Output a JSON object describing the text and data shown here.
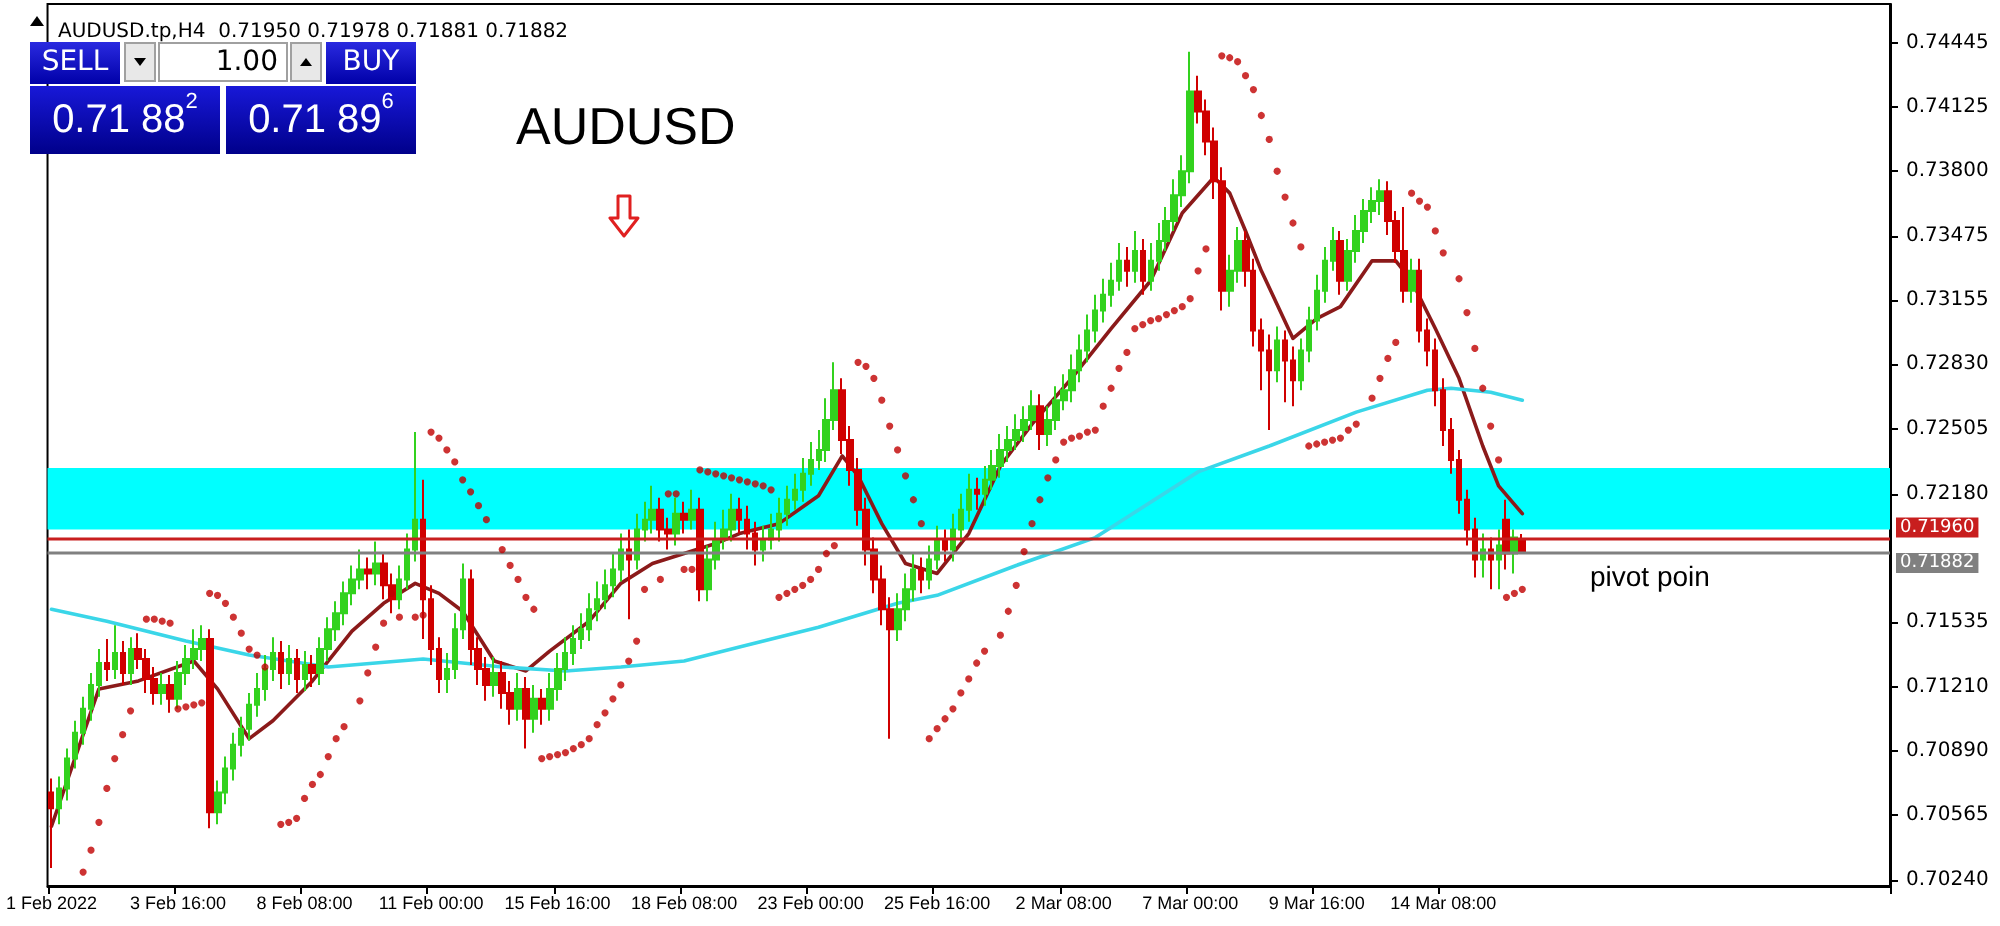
{
  "chart_data": {
    "type": "candlestick",
    "title": "AUDUSD.tp,H4  0.71950 0.71978 0.71881 0.71882",
    "annotations": [
      "AUDUSD",
      "pivot poin",
      "SELL",
      "1.00",
      "BUY",
      "0.71 88$^{2}$",
      "0.71 89$^{6}$"
    ],
    "categories": [
      "1 Feb 2022",
      null,
      null,
      null,
      null,
      null,
      null,
      null,
      null,
      null,
      null,
      null,
      null,
      null,
      null,
      null,
      "3 Feb 16:00",
      null,
      null,
      null,
      null,
      null,
      null,
      null,
      null,
      null,
      null,
      null,
      null,
      null,
      null,
      null,
      "8 Feb 08:00",
      null,
      null,
      null,
      null,
      null,
      null,
      null,
      null,
      null,
      null,
      null,
      null,
      null,
      null,
      null,
      "11 Feb 00:00",
      null,
      null,
      null,
      null,
      null,
      null,
      null,
      null,
      null,
      null,
      null,
      null,
      null,
      null,
      null,
      "15 Feb 16:00",
      null,
      null,
      null,
      null,
      null,
      null,
      null,
      null,
      null,
      null,
      null,
      null,
      null,
      null,
      null,
      "18 Feb 08:00",
      null,
      null,
      null,
      null,
      null,
      null,
      null,
      null,
      null,
      null,
      null,
      null,
      null,
      null,
      null,
      "23 Feb 00:00",
      null,
      null,
      null,
      null,
      null,
      null,
      null,
      null,
      null,
      null,
      null,
      null,
      null,
      null,
      null,
      "25 Feb 16:00",
      null,
      null,
      null,
      null,
      null,
      null,
      null,
      null,
      null,
      null,
      null,
      null,
      null,
      null,
      null,
      "2 Mar 08:00",
      null,
      null,
      null,
      null,
      null,
      null,
      null,
      null,
      null,
      null,
      null,
      null,
      null,
      null,
      null,
      "7 Mar 00:00",
      null,
      null,
      null,
      null,
      null,
      null,
      null,
      null,
      null,
      null,
      null,
      null,
      null,
      null,
      null,
      "9 Mar 16:00",
      null,
      null,
      null,
      null,
      null,
      null,
      null,
      null,
      null,
      null,
      null,
      null,
      null,
      null,
      null,
      "14 Mar 08:00",
      null,
      null,
      null,
      null,
      null,
      null,
      null,
      null,
      null,
      null,
      null,
      null,
      null,
      null,
      null,
      null,
      null,
      null,
      null,
      null,
      null,
      null,
      null,
      null,
      null,
      null,
      null,
      null,
      null,
      null,
      null,
      null,
      null,
      null,
      null,
      null,
      null,
      null,
      null,
      null,
      null,
      null,
      null,
      null,
      null,
      null,
      null,
      null,
      null,
      null,
      null,
      null,
      null,
      null,
      null,
      null
    ],
    "ohlc": [
      [
        0.7068,
        0.7075,
        0.703,
        0.706
      ],
      [
        0.706,
        0.7076,
        0.7052,
        0.707
      ],
      [
        0.707,
        0.709,
        0.7064,
        0.7085
      ],
      [
        0.7085,
        0.7104,
        0.708,
        0.7098
      ],
      [
        0.7098,
        0.7116,
        0.7092,
        0.711
      ],
      [
        0.711,
        0.7128,
        0.7104,
        0.7122
      ],
      [
        0.7122,
        0.714,
        0.7116,
        0.7133
      ],
      [
        0.7133,
        0.7145,
        0.7124,
        0.713
      ],
      [
        0.713,
        0.7152,
        0.7125,
        0.7138
      ],
      [
        0.7138,
        0.7144,
        0.7122,
        0.7128
      ],
      [
        0.7128,
        0.7146,
        0.7122,
        0.714
      ],
      [
        0.714,
        0.7148,
        0.713,
        0.7135
      ],
      [
        0.7135,
        0.714,
        0.7118,
        0.7125
      ],
      [
        0.7125,
        0.7131,
        0.7112,
        0.7118
      ],
      [
        0.7118,
        0.7128,
        0.7112,
        0.7122
      ],
      [
        0.7122,
        0.7127,
        0.7108,
        0.7115
      ],
      [
        0.7115,
        0.7134,
        0.711,
        0.7128
      ],
      [
        0.7128,
        0.7142,
        0.7122,
        0.7135
      ],
      [
        0.7135,
        0.715,
        0.713,
        0.714
      ],
      [
        0.714,
        0.7152,
        0.7134,
        0.7145
      ],
      [
        0.7145,
        0.715,
        0.705,
        0.7058
      ],
      [
        0.7058,
        0.7074,
        0.7052,
        0.7068
      ],
      [
        0.7068,
        0.7086,
        0.7062,
        0.708
      ],
      [
        0.708,
        0.7098,
        0.7074,
        0.7092
      ],
      [
        0.7092,
        0.7106,
        0.7086,
        0.71
      ],
      [
        0.71,
        0.7118,
        0.7094,
        0.7112
      ],
      [
        0.7112,
        0.7128,
        0.7106,
        0.712
      ],
      [
        0.712,
        0.7137,
        0.7114,
        0.713
      ],
      [
        0.713,
        0.7146,
        0.7124,
        0.7138
      ],
      [
        0.7138,
        0.7144,
        0.712,
        0.7128
      ],
      [
        0.7128,
        0.7142,
        0.7122,
        0.7135
      ],
      [
        0.7135,
        0.714,
        0.7118,
        0.7125
      ],
      [
        0.7125,
        0.7139,
        0.7119,
        0.7132
      ],
      [
        0.7132,
        0.7137,
        0.7121,
        0.7128
      ],
      [
        0.7128,
        0.7146,
        0.7122,
        0.714
      ],
      [
        0.714,
        0.7156,
        0.7134,
        0.715
      ],
      [
        0.715,
        0.7164,
        0.7144,
        0.7158
      ],
      [
        0.7158,
        0.7174,
        0.7152,
        0.7168
      ],
      [
        0.7168,
        0.7182,
        0.7162,
        0.7175
      ],
      [
        0.7175,
        0.719,
        0.717,
        0.718
      ],
      [
        0.718,
        0.7186,
        0.717,
        0.7178
      ],
      [
        0.7178,
        0.7194,
        0.7172,
        0.7183
      ],
      [
        0.7183,
        0.7188,
        0.7165,
        0.7172
      ],
      [
        0.7172,
        0.7178,
        0.7158,
        0.7165
      ],
      [
        0.7165,
        0.7182,
        0.716,
        0.7175
      ],
      [
        0.7175,
        0.7198,
        0.717,
        0.719
      ],
      [
        0.719,
        0.7249,
        0.7184,
        0.7205
      ],
      [
        0.7205,
        0.7225,
        0.7145,
        0.7165
      ],
      [
        0.7165,
        0.7172,
        0.7132,
        0.714
      ],
      [
        0.714,
        0.7146,
        0.7118,
        0.7125
      ],
      [
        0.7125,
        0.7138,
        0.7118,
        0.713
      ],
      [
        0.713,
        0.7158,
        0.7125,
        0.715
      ],
      [
        0.715,
        0.7183,
        0.7145,
        0.7175
      ],
      [
        0.7175,
        0.718,
        0.7132,
        0.714
      ],
      [
        0.714,
        0.7146,
        0.7122,
        0.713
      ],
      [
        0.713,
        0.7136,
        0.7114,
        0.7122
      ],
      [
        0.7122,
        0.7136,
        0.7116,
        0.7128
      ],
      [
        0.7128,
        0.7134,
        0.711,
        0.7118
      ],
      [
        0.7118,
        0.7124,
        0.7102,
        0.711
      ],
      [
        0.711,
        0.7128,
        0.7104,
        0.712
      ],
      [
        0.712,
        0.7126,
        0.709,
        0.7105
      ],
      [
        0.7105,
        0.7122,
        0.7098,
        0.7115
      ],
      [
        0.7115,
        0.712,
        0.7102,
        0.711
      ],
      [
        0.711,
        0.7128,
        0.7104,
        0.712
      ],
      [
        0.712,
        0.7138,
        0.7114,
        0.713
      ],
      [
        0.713,
        0.7146,
        0.7124,
        0.7138
      ],
      [
        0.7138,
        0.7152,
        0.7132,
        0.7145
      ],
      [
        0.7145,
        0.7158,
        0.714,
        0.715
      ],
      [
        0.715,
        0.7168,
        0.7144,
        0.716
      ],
      [
        0.716,
        0.7174,
        0.7154,
        0.7165
      ],
      [
        0.7165,
        0.718,
        0.716,
        0.7172
      ],
      [
        0.7172,
        0.7188,
        0.7166,
        0.718
      ],
      [
        0.718,
        0.7198,
        0.7174,
        0.719
      ],
      [
        0.719,
        0.72,
        0.7155,
        0.7185
      ],
      [
        0.7185,
        0.7208,
        0.718,
        0.72
      ],
      [
        0.72,
        0.7214,
        0.7194,
        0.7205
      ],
      [
        0.7205,
        0.7222,
        0.7198,
        0.721
      ],
      [
        0.721,
        0.7216,
        0.7194,
        0.72
      ],
      [
        0.72,
        0.7206,
        0.719,
        0.7198
      ],
      [
        0.7198,
        0.7216,
        0.7192,
        0.7208
      ],
      [
        0.7208,
        0.7214,
        0.7198,
        0.7205
      ],
      [
        0.7205,
        0.722,
        0.72,
        0.721
      ],
      [
        0.721,
        0.7216,
        0.7164,
        0.717
      ],
      [
        0.717,
        0.7192,
        0.7164,
        0.7185
      ],
      [
        0.7185,
        0.7204,
        0.718,
        0.7195
      ],
      [
        0.7195,
        0.721,
        0.719,
        0.72
      ],
      [
        0.72,
        0.7218,
        0.7194,
        0.721
      ],
      [
        0.721,
        0.7216,
        0.7198,
        0.7205
      ],
      [
        0.7205,
        0.7212,
        0.719,
        0.7198
      ],
      [
        0.7198,
        0.7204,
        0.7182,
        0.719
      ],
      [
        0.719,
        0.7202,
        0.7184,
        0.7195
      ],
      [
        0.7195,
        0.7208,
        0.719,
        0.72
      ],
      [
        0.72,
        0.7216,
        0.7194,
        0.7208
      ],
      [
        0.7208,
        0.7222,
        0.7202,
        0.7215
      ],
      [
        0.7215,
        0.7228,
        0.721,
        0.722
      ],
      [
        0.722,
        0.7236,
        0.7214,
        0.7228
      ],
      [
        0.7228,
        0.7244,
        0.7222,
        0.7235
      ],
      [
        0.7235,
        0.725,
        0.723,
        0.724
      ],
      [
        0.724,
        0.7266,
        0.7234,
        0.7255
      ],
      [
        0.7255,
        0.7284,
        0.725,
        0.727
      ],
      [
        0.727,
        0.7276,
        0.7238,
        0.7245
      ],
      [
        0.7245,
        0.7252,
        0.7222,
        0.723
      ],
      [
        0.723,
        0.7236,
        0.7202,
        0.721
      ],
      [
        0.721,
        0.7216,
        0.7182,
        0.719
      ],
      [
        0.719,
        0.7196,
        0.7168,
        0.7175
      ],
      [
        0.7175,
        0.7182,
        0.7152,
        0.716
      ],
      [
        0.716,
        0.7166,
        0.7095,
        0.715
      ],
      [
        0.715,
        0.7168,
        0.7144,
        0.716
      ],
      [
        0.716,
        0.7178,
        0.7154,
        0.717
      ],
      [
        0.717,
        0.7188,
        0.7164,
        0.718
      ],
      [
        0.718,
        0.7186,
        0.7168,
        0.7175
      ],
      [
        0.7175,
        0.7192,
        0.717,
        0.7185
      ],
      [
        0.7185,
        0.7202,
        0.718,
        0.7195
      ],
      [
        0.7195,
        0.72,
        0.7184,
        0.719
      ],
      [
        0.719,
        0.7208,
        0.7184,
        0.72
      ],
      [
        0.72,
        0.7218,
        0.7194,
        0.721
      ],
      [
        0.721,
        0.7228,
        0.7204,
        0.722
      ],
      [
        0.722,
        0.7226,
        0.721,
        0.7218
      ],
      [
        0.7218,
        0.7232,
        0.7212,
        0.7225
      ],
      [
        0.7225,
        0.724,
        0.722,
        0.7232
      ],
      [
        0.7232,
        0.7248,
        0.7226,
        0.724
      ],
      [
        0.724,
        0.7252,
        0.7234,
        0.7245
      ],
      [
        0.7245,
        0.7258,
        0.724,
        0.725
      ],
      [
        0.725,
        0.7262,
        0.7244,
        0.7255
      ],
      [
        0.7255,
        0.727,
        0.725,
        0.7262
      ],
      [
        0.7262,
        0.7268,
        0.724,
        0.7248
      ],
      [
        0.7248,
        0.7262,
        0.7242,
        0.7255
      ],
      [
        0.7255,
        0.7272,
        0.725,
        0.7265
      ],
      [
        0.7265,
        0.7278,
        0.726,
        0.727
      ],
      [
        0.727,
        0.7288,
        0.7264,
        0.728
      ],
      [
        0.728,
        0.7298,
        0.7274,
        0.729
      ],
      [
        0.729,
        0.7308,
        0.7284,
        0.73
      ],
      [
        0.73,
        0.7318,
        0.7294,
        0.731
      ],
      [
        0.731,
        0.7326,
        0.7304,
        0.7318
      ],
      [
        0.7318,
        0.7334,
        0.7312,
        0.7325
      ],
      [
        0.7325,
        0.7344,
        0.732,
        0.7335
      ],
      [
        0.7335,
        0.7342,
        0.7322,
        0.733
      ],
      [
        0.733,
        0.735,
        0.7324,
        0.734
      ],
      [
        0.734,
        0.7346,
        0.7318,
        0.7325
      ],
      [
        0.7325,
        0.7344,
        0.732,
        0.7335
      ],
      [
        0.7335,
        0.7354,
        0.733,
        0.7345
      ],
      [
        0.7345,
        0.7362,
        0.734,
        0.7355
      ],
      [
        0.7355,
        0.7376,
        0.735,
        0.7368
      ],
      [
        0.7368,
        0.7388,
        0.7362,
        0.738
      ],
      [
        0.738,
        0.744,
        0.7374,
        0.742
      ],
      [
        0.742,
        0.7428,
        0.7404,
        0.741
      ],
      [
        0.741,
        0.7416,
        0.7388,
        0.7395
      ],
      [
        0.7395,
        0.7402,
        0.7366,
        0.7375
      ],
      [
        0.7375,
        0.7382,
        0.731,
        0.732
      ],
      [
        0.732,
        0.7338,
        0.7312,
        0.733
      ],
      [
        0.733,
        0.7352,
        0.7324,
        0.7345
      ],
      [
        0.7345,
        0.735,
        0.7322,
        0.733
      ],
      [
        0.733,
        0.7336,
        0.7292,
        0.73
      ],
      [
        0.73,
        0.7306,
        0.727,
        0.729
      ],
      [
        0.729,
        0.7298,
        0.725,
        0.728
      ],
      [
        0.728,
        0.7302,
        0.7274,
        0.7295
      ],
      [
        0.7295,
        0.73,
        0.7264,
        0.7285
      ],
      [
        0.7285,
        0.7292,
        0.7262,
        0.7275
      ],
      [
        0.7275,
        0.7296,
        0.727,
        0.729
      ],
      [
        0.729,
        0.7312,
        0.7284,
        0.7305
      ],
      [
        0.7305,
        0.7328,
        0.73,
        0.732
      ],
      [
        0.732,
        0.7342,
        0.7314,
        0.7335
      ],
      [
        0.7335,
        0.7352,
        0.733,
        0.7345
      ],
      [
        0.7345,
        0.735,
        0.7318,
        0.7325
      ],
      [
        0.7325,
        0.7346,
        0.732,
        0.734
      ],
      [
        0.734,
        0.7358,
        0.7334,
        0.735
      ],
      [
        0.735,
        0.7366,
        0.7344,
        0.736
      ],
      [
        0.736,
        0.7372,
        0.7354,
        0.7365
      ],
      [
        0.7365,
        0.7376,
        0.7358,
        0.737
      ],
      [
        0.737,
        0.7375,
        0.7348,
        0.7355
      ],
      [
        0.7355,
        0.736,
        0.7334,
        0.734
      ],
      [
        0.734,
        0.7362,
        0.7314,
        0.732
      ],
      [
        0.732,
        0.7336,
        0.7314,
        0.733
      ],
      [
        0.733,
        0.7336,
        0.7294,
        0.73
      ],
      [
        0.73,
        0.7306,
        0.7282,
        0.729
      ],
      [
        0.729,
        0.7296,
        0.7262,
        0.727
      ],
      [
        0.727,
        0.7276,
        0.7242,
        0.725
      ],
      [
        0.725,
        0.7256,
        0.7228,
        0.7235
      ],
      [
        0.7235,
        0.724,
        0.7208,
        0.7215
      ],
      [
        0.7215,
        0.722,
        0.7192,
        0.72
      ],
      [
        0.72,
        0.7206,
        0.7176,
        0.7185
      ],
      [
        0.7185,
        0.7198,
        0.7176,
        0.719
      ],
      [
        0.719,
        0.7196,
        0.717,
        0.7185
      ],
      [
        0.7185,
        0.72,
        0.717,
        0.7192
      ],
      [
        0.7205,
        0.7215,
        0.718,
        0.7188
      ],
      [
        0.7188,
        0.72,
        0.7178,
        0.7196
      ],
      [
        0.7195,
        0.71978,
        0.71881,
        0.71882
      ],
      null,
      null,
      null,
      null,
      null,
      null,
      null,
      null,
      null,
      null,
      null,
      null,
      null,
      null,
      null,
      null,
      null,
      null,
      null,
      null,
      null,
      null,
      null,
      null,
      null,
      null,
      null,
      null,
      null,
      null,
      null,
      null,
      null,
      null,
      null,
      null,
      null,
      null,
      null,
      null,
      null,
      null,
      null,
      null,
      null,
      null
    ],
    "colors": [
      "#d00000",
      "#32d21e",
      "#32d21e",
      "#32d21e",
      "#32d21e",
      "#32d21e",
      "#32d21e",
      "#d00000",
      "#32d21e",
      "#d00000",
      "#32d21e",
      "#d00000",
      "#d00000",
      "#d00000",
      "#32d21e",
      "#d00000",
      "#32d21e",
      "#32d21e",
      "#32d21e",
      "#32d21e",
      "#d00000",
      "#32d21e",
      "#32d21e",
      "#32d21e",
      "#32d21e",
      "#32d21e",
      "#32d21e",
      "#32d21e",
      "#32d21e",
      "#d00000",
      "#32d21e",
      "#d00000",
      "#32d21e",
      "#d00000",
      "#32d21e",
      "#32d21e",
      "#32d21e",
      "#32d21e",
      "#32d21e",
      "#32d21e",
      "#d00000",
      "#32d21e",
      "#d00000",
      "#d00000",
      "#32d21e",
      "#32d21e",
      "#32d21e",
      "#d00000",
      "#d00000",
      "#d00000",
      "#32d21e",
      "#32d21e",
      "#32d21e",
      "#d00000",
      "#d00000",
      "#d00000",
      "#32d21e",
      "#d00000",
      "#d00000",
      "#32d21e",
      "#d00000",
      "#32d21e",
      "#d00000",
      "#32d21e",
      "#32d21e",
      "#32d21e",
      "#32d21e",
      "#32d21e",
      "#32d21e",
      "#32d21e",
      "#32d21e",
      "#32d21e",
      "#32d21e",
      "#d00000",
      "#32d21e",
      "#32d21e",
      "#32d21e",
      "#d00000",
      "#d00000",
      "#32d21e",
      "#d00000",
      "#32d21e",
      "#d00000",
      "#32d21e",
      "#32d21e",
      "#32d21e",
      "#32d21e",
      "#d00000",
      "#d00000",
      "#d00000",
      "#32d21e",
      "#32d21e",
      "#32d21e",
      "#32d21e",
      "#32d21e",
      "#32d21e",
      "#32d21e",
      "#32d21e",
      "#32d21e",
      "#32d21e",
      "#d00000",
      "#d00000",
      "#d00000",
      "#d00000",
      "#d00000",
      "#d00000",
      "#d00000",
      "#32d21e",
      "#32d21e",
      "#32d21e",
      "#d00000",
      "#32d21e",
      "#32d21e",
      "#d00000",
      "#32d21e",
      "#32d21e",
      "#32d21e",
      "#d00000",
      "#32d21e",
      "#32d21e",
      "#32d21e",
      "#32d21e",
      "#32d21e",
      "#32d21e",
      "#32d21e",
      "#d00000",
      "#32d21e",
      "#32d21e",
      "#32d21e",
      "#32d21e",
      "#32d21e",
      "#32d21e",
      "#32d21e",
      "#32d21e",
      "#32d21e",
      "#32d21e",
      "#d00000",
      "#32d21e",
      "#d00000",
      "#32d21e",
      "#32d21e",
      "#32d21e",
      "#32d21e",
      "#32d21e",
      "#32d21e",
      "#d00000",
      "#d00000",
      "#d00000",
      "#d00000",
      "#32d21e",
      "#32d21e",
      "#d00000",
      "#d00000",
      "#d00000",
      "#d00000",
      "#32d21e",
      "#d00000",
      "#d00000",
      "#32d21e",
      "#32d21e",
      "#32d21e",
      "#32d21e",
      "#32d21e",
      "#d00000",
      "#32d21e",
      "#32d21e",
      "#32d21e",
      "#32d21e",
      "#32d21e",
      "#d00000",
      "#d00000",
      "#d00000",
      "#32d21e",
      "#d00000",
      "#d00000",
      "#d00000",
      "#d00000",
      "#d00000",
      "#d00000",
      "#d00000",
      "#d00000",
      "#32d21e",
      "#d00000",
      "#32d21e",
      "#d00000",
      "#32d21e",
      "#d00000",
      null,
      null,
      null,
      null,
      null,
      null,
      null,
      null,
      null,
      null,
      null,
      null,
      null,
      null,
      null,
      null,
      null,
      null,
      null,
      null,
      null,
      null,
      null,
      null,
      null,
      null,
      null,
      null,
      null,
      null,
      null,
      null,
      null,
      null,
      null,
      null,
      null,
      null,
      null,
      null,
      null,
      null,
      null,
      null,
      null,
      null
    ],
    "series": [
      {
        "type": "line",
        "color": "#8b1a1a",
        "marker": "none",
        "values": [
          0.7051,
          null,
          null,
          null,
          null,
          null,
          0.712,
          null,
          null,
          null,
          null,
          0.7124,
          null,
          null,
          null,
          null,
          null,
          null,
          0.7134,
          null,
          null,
          0.712,
          null,
          null,
          null,
          0.7095,
          null,
          null,
          0.7104,
          null,
          null,
          null,
          null,
          0.7124,
          null,
          null,
          null,
          null,
          0.7149,
          null,
          null,
          null,
          0.7163,
          null,
          null,
          null,
          0.7173,
          null,
          null,
          0.7168,
          null,
          null,
          0.7159,
          null,
          null,
          null,
          0.7134,
          null,
          null,
          null,
          0.7129,
          null,
          null,
          0.7139,
          null,
          null,
          null,
          null,
          0.7154,
          null,
          null,
          null,
          0.7173,
          null,
          null,
          null,
          0.7183,
          null,
          null,
          null,
          0.7188,
          null,
          null,
          null,
          0.7193,
          null,
          null,
          0.7198,
          null,
          null,
          null,
          null,
          0.7203,
          null,
          null,
          null,
          null,
          0.7217,
          null,
          null,
          0.7237,
          null,
          0.7227,
          null,
          null,
          0.7203,
          null,
          null,
          0.7183,
          null,
          null,
          null,
          0.7178,
          null,
          null,
          null,
          0.7198,
          null,
          null,
          null,
          0.7232,
          null,
          null,
          null,
          0.7253,
          null,
          null,
          null,
          null,
          0.7276,
          null,
          null,
          null,
          null,
          0.7301,
          null,
          null,
          null,
          null,
          0.7325,
          null,
          null,
          null,
          0.7359,
          null,
          null,
          null,
          0.7377,
          null,
          0.7369,
          null,
          0.735,
          null,
          0.733,
          null,
          null,
          null,
          0.7296,
          null,
          null,
          0.7306,
          null,
          null,
          0.7312,
          null,
          null,
          null,
          0.7335,
          null,
          null,
          0.7335,
          null,
          0.7325,
          null,
          null,
          0.7301,
          null,
          null,
          0.7276,
          null,
          null,
          0.7242,
          null,
          0.7222,
          null,
          null,
          0.7208,
          null,
          null,
          null,
          null,
          null,
          null,
          null,
          null,
          null,
          null,
          null,
          null,
          null,
          null,
          null,
          null,
          null,
          null,
          null,
          null,
          null,
          null,
          null,
          null,
          null,
          null,
          null,
          null,
          null,
          null,
          null,
          null,
          null,
          null,
          null,
          null,
          null,
          null,
          null,
          null,
          null,
          null,
          null,
          null,
          null,
          null
        ]
      },
      {
        "type": "line",
        "color": "#3ad6e8",
        "marker": "none",
        "values": [
          0.716,
          null,
          null,
          null,
          null,
          null,
          null,
          0.7154,
          null,
          null,
          null,
          null,
          null,
          null,
          null,
          null,
          null,
          0.7144,
          null,
          null,
          null,
          null,
          null,
          null,
          null,
          0.7137,
          null,
          null,
          null,
          null,
          null,
          null,
          null,
          null,
          null,
          0.7131,
          null,
          null,
          null,
          null,
          null,
          null,
          null,
          null,
          null,
          null,
          null,
          0.7135,
          null,
          null,
          null,
          null,
          null,
          null,
          null,
          null,
          null,
          0.7131,
          null,
          null,
          null,
          null,
          null,
          null,
          null,
          0.7129,
          null,
          null,
          null,
          null,
          null,
          null,
          0.7131,
          null,
          null,
          null,
          null,
          null,
          null,
          null,
          0.7134,
          null,
          null,
          null,
          null,
          null,
          null,
          0.7141,
          null,
          null,
          null,
          null,
          null,
          null,
          null,
          null,
          null,
          0.7151,
          null,
          null,
          null,
          null,
          null,
          null,
          null,
          null,
          null,
          0.7163,
          null,
          null,
          null,
          null,
          0.7167,
          null,
          null,
          null,
          null,
          null,
          null,
          null,
          null,
          null,
          0.7182,
          null,
          null,
          null,
          null,
          null,
          null,
          null,
          null,
          null,
          0.7196,
          null,
          null,
          null,
          null,
          null,
          null,
          null,
          null,
          null,
          null,
          null,
          null,
          0.7229,
          null,
          null,
          null,
          null,
          null,
          null,
          null,
          null,
          0.7242,
          null,
          null,
          null,
          null,
          null,
          null,
          null,
          null,
          null,
          null,
          0.7259,
          null,
          null,
          null,
          null,
          null,
          null,
          null,
          null,
          0.727,
          null,
          null,
          0.7271,
          null,
          null,
          null,
          null,
          0.7269,
          null,
          null,
          null,
          0.7265,
          null,
          null,
          null,
          null,
          null,
          null,
          null,
          null,
          null,
          null,
          null,
          null,
          null,
          null,
          null,
          null,
          null,
          null,
          null,
          null,
          null,
          null,
          null,
          null,
          null,
          null,
          null,
          null,
          null,
          null,
          null,
          null,
          null,
          null,
          null,
          null,
          null,
          null,
          null,
          null,
          null,
          null,
          null,
          null,
          null,
          null
        ]
      },
      {
        "type": "scatter",
        "color": "#c00000",
        "marker": "circle",
        "values": [
          null,
          null,
          null,
          null,
          0.7028,
          0.7039,
          0.7053,
          0.707,
          0.7085,
          0.7097,
          0.7109,
          null,
          0.7155,
          0.7155,
          0.7154,
          0.7153,
          0.711,
          0.7111,
          0.7112,
          0.7113,
          0.7168,
          0.7167,
          0.7163,
          0.7156,
          0.7148,
          0.714,
          0.7137,
          0.7131,
          null,
          0.7052,
          0.7053,
          0.7055,
          0.7065,
          0.7072,
          0.7077,
          0.7086,
          0.7095,
          0.7101,
          null,
          0.7114,
          0.7128,
          0.7141,
          0.7153,
          0.7168,
          0.7156,
          null,
          0.7156,
          0.7157,
          0.7249,
          0.7246,
          0.724,
          0.7234,
          0.7225,
          0.7219,
          0.7212,
          0.7205,
          null,
          0.719,
          0.7182,
          0.7175,
          0.7166,
          0.716,
          0.7085,
          0.7086,
          0.7087,
          0.7088,
          0.709,
          0.7092,
          0.7095,
          0.7102,
          0.7108,
          0.7115,
          0.7122,
          0.7134,
          0.7144,
          0.717,
          null,
          0.7175,
          0.7218,
          0.7218,
          0.718,
          0.718,
          0.723,
          0.7229,
          0.7228,
          0.7227,
          0.7226,
          0.7225,
          0.7224,
          0.7223,
          0.7222,
          0.722,
          0.7166,
          0.7168,
          0.717,
          0.7172,
          0.7175,
          0.718,
          0.7188,
          0.7192,
          null,
          null,
          0.7284,
          0.7282,
          0.7276,
          0.7265,
          0.7252,
          0.724,
          0.7227,
          0.7215,
          0.7203,
          0.7095,
          0.71,
          0.7105,
          0.711,
          0.7118,
          0.7125,
          0.7133,
          0.7139,
          null,
          0.7147,
          0.7159,
          0.7172,
          0.7189,
          0.7203,
          0.7215,
          0.7226,
          0.7235,
          0.7244,
          0.7246,
          0.7247,
          0.7249,
          0.725,
          0.7262,
          0.7271,
          0.7281,
          0.7289,
          0.7301,
          0.7303,
          0.7305,
          0.7306,
          0.7308,
          0.731,
          0.7312,
          0.7316,
          0.733,
          0.7341,
          null,
          0.7438,
          0.7437,
          0.7435,
          0.7428,
          0.7421,
          0.7408,
          0.7396,
          0.738,
          0.7367,
          0.7354,
          0.7342,
          0.7242,
          0.7243,
          0.7244,
          0.7245,
          0.7246,
          0.725,
          0.7253,
          null,
          0.7266,
          0.7276,
          0.7286,
          0.7294,
          null,
          0.7369,
          0.7365,
          0.7362,
          0.735,
          0.7339,
          null,
          0.7326,
          0.7309,
          0.7291,
          0.7271,
          0.7252,
          0.7235,
          0.7166,
          0.7168,
          0.717,
          null,
          null,
          null,
          null,
          null,
          null,
          null,
          null,
          null,
          null,
          null,
          null,
          null,
          null,
          null,
          null,
          null,
          null,
          null,
          null,
          null,
          null,
          null,
          null,
          null,
          null,
          null,
          null,
          null,
          null,
          null,
          null,
          null,
          null,
          null,
          null,
          null,
          null,
          null,
          null,
          null,
          null,
          null,
          null,
          null,
          null
        ]
      }
    ],
    "ref_lines": [
      {
        "axis": "y",
        "value": 0.7196,
        "label": "0.71960",
        "color": "#c81e1e"
      },
      {
        "axis": "y",
        "value": 0.71882,
        "label": "0.71882",
        "color": "#808080"
      }
    ],
    "bands": [
      {
        "axis": "y",
        "from": 0.72,
        "to": 0.7231,
        "color": "#00ffff"
      }
    ],
    "ylim": [
      0.7021,
      0.7464
    ],
    "yticks": [
      {
        "value": 0.7024,
        "label": "0.70240"
      },
      {
        "value": 0.70565,
        "label": "0.70565"
      },
      {
        "value": 0.7089,
        "label": "0.70890"
      },
      {
        "value": 0.7121,
        "label": "0.71210"
      },
      {
        "value": 0.71535,
        "label": "0.71535"
      },
      {
        "value": 0.7218,
        "label": "0.72180"
      },
      {
        "value": 0.72505,
        "label": "0.72505"
      },
      {
        "value": 0.7283,
        "label": "0.72830"
      },
      {
        "value": 0.73155,
        "label": "0.73155"
      },
      {
        "value": 0.73475,
        "label": "0.73475"
      },
      {
        "value": 0.738,
        "label": "0.73800"
      },
      {
        "value": 0.74125,
        "label": "0.74125"
      },
      {
        "value": 0.74445,
        "label": "0.74445"
      }
    ]
  }
}
